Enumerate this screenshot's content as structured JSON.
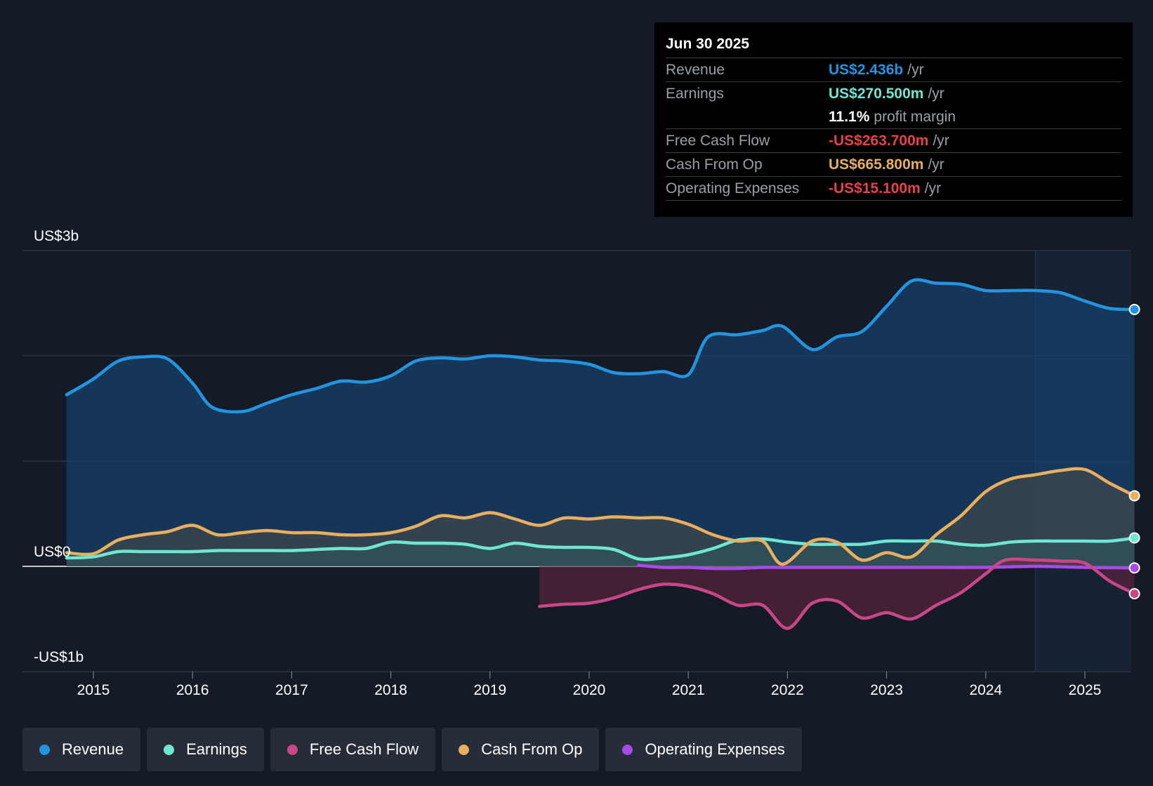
{
  "colors": {
    "revenue": "#2394df",
    "earnings": "#6fe6d3",
    "free_cash_flow": "#c94789",
    "cash_from_op": "#e8af5e",
    "operating_expenses": "#a64ae8",
    "negative": "#e8414a"
  },
  "tooltip": {
    "date": "Jun 30 2025",
    "rows": [
      {
        "label": "Revenue",
        "value": "US$2.436b",
        "unit": "/yr"
      },
      {
        "label": "Earnings",
        "value": "US$270.500m",
        "unit": "/yr"
      },
      {
        "margin_value": "11.1%",
        "margin_label": "profit margin"
      },
      {
        "label": "Free Cash Flow",
        "value": "-US$263.700m",
        "unit": "/yr"
      },
      {
        "label": "Cash From Op",
        "value": "US$665.800m",
        "unit": "/yr"
      },
      {
        "label": "Operating Expenses",
        "value": "-US$15.100m",
        "unit": "/yr"
      }
    ]
  },
  "legend": [
    {
      "label": "Revenue",
      "color": "#2394df"
    },
    {
      "label": "Earnings",
      "color": "#6fe6d3"
    },
    {
      "label": "Free Cash Flow",
      "color": "#c94789"
    },
    {
      "label": "Cash From Op",
      "color": "#e8af5e"
    },
    {
      "label": "Operating Expenses",
      "color": "#a64ae8"
    }
  ],
  "chart_data": {
    "type": "area",
    "title": "",
    "xlabel": "",
    "ylabel": "",
    "ylim": [
      -1.0,
      3.0
    ],
    "xlim": [
      2014.73,
      2025.5
    ],
    "x_ticks": [
      2015,
      2016,
      2017,
      2018,
      2019,
      2020,
      2021,
      2022,
      2023,
      2024,
      2025
    ],
    "x_tick_labels": [
      "2015",
      "2016",
      "2017",
      "2018",
      "2019",
      "2020",
      "2021",
      "2022",
      "2023",
      "2024",
      "2025"
    ],
    "y_axis_labels": [
      {
        "value": 3.0,
        "label": "US$3b"
      },
      {
        "value": 0.0,
        "label": "US$0"
      },
      {
        "value": -1.0,
        "label": "-US$1b"
      }
    ],
    "y_gridlines": [
      3.0,
      2.0,
      1.0,
      0.0,
      -1.0
    ],
    "forecast_shade_start": 2024.5,
    "units": "US$ billions",
    "series": [
      {
        "name": "Revenue",
        "key": "revenue",
        "points": [
          [
            2014.73,
            1.63
          ],
          [
            2015.0,
            1.78
          ],
          [
            2015.25,
            1.95
          ],
          [
            2015.5,
            1.99
          ],
          [
            2015.75,
            1.97
          ],
          [
            2016.0,
            1.74
          ],
          [
            2016.2,
            1.51
          ],
          [
            2016.5,
            1.47
          ],
          [
            2016.75,
            1.55
          ],
          [
            2017.0,
            1.63
          ],
          [
            2017.25,
            1.69
          ],
          [
            2017.5,
            1.76
          ],
          [
            2017.75,
            1.75
          ],
          [
            2018.0,
            1.81
          ],
          [
            2018.25,
            1.95
          ],
          [
            2018.5,
            1.98
          ],
          [
            2018.75,
            1.97
          ],
          [
            2019.0,
            2.0
          ],
          [
            2019.25,
            1.99
          ],
          [
            2019.5,
            1.96
          ],
          [
            2019.75,
            1.95
          ],
          [
            2020.0,
            1.92
          ],
          [
            2020.25,
            1.84
          ],
          [
            2020.5,
            1.83
          ],
          [
            2020.75,
            1.85
          ],
          [
            2021.0,
            1.82
          ],
          [
            2021.2,
            2.18
          ],
          [
            2021.5,
            2.2
          ],
          [
            2021.75,
            2.24
          ],
          [
            2021.95,
            2.28
          ],
          [
            2022.25,
            2.06
          ],
          [
            2022.5,
            2.18
          ],
          [
            2022.75,
            2.23
          ],
          [
            2023.0,
            2.47
          ],
          [
            2023.25,
            2.71
          ],
          [
            2023.5,
            2.69
          ],
          [
            2023.75,
            2.68
          ],
          [
            2024.0,
            2.62
          ],
          [
            2024.25,
            2.62
          ],
          [
            2024.5,
            2.62
          ],
          [
            2024.75,
            2.6
          ],
          [
            2025.0,
            2.52
          ],
          [
            2025.25,
            2.45
          ],
          [
            2025.5,
            2.44
          ]
        ]
      },
      {
        "name": "Earnings",
        "key": "earnings",
        "points": [
          [
            2014.73,
            0.08
          ],
          [
            2015.0,
            0.09
          ],
          [
            2015.25,
            0.14
          ],
          [
            2015.5,
            0.14
          ],
          [
            2015.75,
            0.14
          ],
          [
            2016.0,
            0.14
          ],
          [
            2016.25,
            0.15
          ],
          [
            2016.5,
            0.15
          ],
          [
            2016.75,
            0.15
          ],
          [
            2017.0,
            0.15
          ],
          [
            2017.25,
            0.16
          ],
          [
            2017.5,
            0.17
          ],
          [
            2017.75,
            0.17
          ],
          [
            2018.0,
            0.23
          ],
          [
            2018.25,
            0.22
          ],
          [
            2018.5,
            0.22
          ],
          [
            2018.75,
            0.21
          ],
          [
            2019.0,
            0.17
          ],
          [
            2019.25,
            0.22
          ],
          [
            2019.5,
            0.19
          ],
          [
            2019.75,
            0.18
          ],
          [
            2020.0,
            0.18
          ],
          [
            2020.25,
            0.16
          ],
          [
            2020.5,
            0.07
          ],
          [
            2020.75,
            0.08
          ],
          [
            2021.0,
            0.11
          ],
          [
            2021.25,
            0.17
          ],
          [
            2021.5,
            0.25
          ],
          [
            2021.75,
            0.26
          ],
          [
            2022.0,
            0.23
          ],
          [
            2022.25,
            0.21
          ],
          [
            2022.5,
            0.21
          ],
          [
            2022.75,
            0.21
          ],
          [
            2023.0,
            0.24
          ],
          [
            2023.25,
            0.24
          ],
          [
            2023.5,
            0.24
          ],
          [
            2023.75,
            0.21
          ],
          [
            2024.0,
            0.2
          ],
          [
            2024.25,
            0.23
          ],
          [
            2024.5,
            0.24
          ],
          [
            2024.75,
            0.24
          ],
          [
            2025.0,
            0.24
          ],
          [
            2025.25,
            0.24
          ],
          [
            2025.5,
            0.27
          ]
        ]
      },
      {
        "name": "Free Cash Flow",
        "key": "free_cash_flow",
        "points": [
          [
            2019.5,
            -0.38
          ],
          [
            2019.75,
            -0.36
          ],
          [
            2020.0,
            -0.35
          ],
          [
            2020.25,
            -0.3
          ],
          [
            2020.5,
            -0.22
          ],
          [
            2020.75,
            -0.17
          ],
          [
            2021.0,
            -0.19
          ],
          [
            2021.25,
            -0.26
          ],
          [
            2021.5,
            -0.37
          ],
          [
            2021.75,
            -0.37
          ],
          [
            2022.0,
            -0.59
          ],
          [
            2022.25,
            -0.35
          ],
          [
            2022.5,
            -0.33
          ],
          [
            2022.75,
            -0.49
          ],
          [
            2023.0,
            -0.44
          ],
          [
            2023.25,
            -0.5
          ],
          [
            2023.5,
            -0.37
          ],
          [
            2023.75,
            -0.25
          ],
          [
            2024.0,
            -0.07
          ],
          [
            2024.2,
            0.06
          ],
          [
            2024.5,
            0.06
          ],
          [
            2024.75,
            0.05
          ],
          [
            2025.0,
            0.03
          ],
          [
            2025.25,
            -0.14
          ],
          [
            2025.5,
            -0.26
          ]
        ]
      },
      {
        "name": "Cash From Op",
        "key": "cash_from_op",
        "points": [
          [
            2014.73,
            0.13
          ],
          [
            2015.0,
            0.12
          ],
          [
            2015.25,
            0.25
          ],
          [
            2015.5,
            0.3
          ],
          [
            2015.75,
            0.33
          ],
          [
            2016.0,
            0.39
          ],
          [
            2016.25,
            0.3
          ],
          [
            2016.5,
            0.32
          ],
          [
            2016.75,
            0.34
          ],
          [
            2017.0,
            0.32
          ],
          [
            2017.25,
            0.32
          ],
          [
            2017.5,
            0.3
          ],
          [
            2017.75,
            0.3
          ],
          [
            2018.0,
            0.32
          ],
          [
            2018.25,
            0.38
          ],
          [
            2018.5,
            0.48
          ],
          [
            2018.75,
            0.46
          ],
          [
            2019.0,
            0.51
          ],
          [
            2019.25,
            0.45
          ],
          [
            2019.5,
            0.39
          ],
          [
            2019.75,
            0.46
          ],
          [
            2020.0,
            0.45
          ],
          [
            2020.25,
            0.47
          ],
          [
            2020.5,
            0.46
          ],
          [
            2020.75,
            0.46
          ],
          [
            2021.0,
            0.4
          ],
          [
            2021.25,
            0.3
          ],
          [
            2021.5,
            0.24
          ],
          [
            2021.75,
            0.24
          ],
          [
            2021.95,
            0.02
          ],
          [
            2022.25,
            0.24
          ],
          [
            2022.5,
            0.23
          ],
          [
            2022.75,
            0.06
          ],
          [
            2023.0,
            0.13
          ],
          [
            2023.25,
            0.09
          ],
          [
            2023.5,
            0.3
          ],
          [
            2023.75,
            0.48
          ],
          [
            2024.0,
            0.71
          ],
          [
            2024.25,
            0.83
          ],
          [
            2024.5,
            0.87
          ],
          [
            2024.75,
            0.91
          ],
          [
            2025.0,
            0.92
          ],
          [
            2025.25,
            0.79
          ],
          [
            2025.5,
            0.67
          ]
        ]
      },
      {
        "name": "Operating Expenses",
        "key": "operating_expenses",
        "points": [
          [
            2020.5,
            0.01
          ],
          [
            2020.75,
            -0.01
          ],
          [
            2021.0,
            -0.01
          ],
          [
            2021.25,
            -0.02
          ],
          [
            2021.5,
            -0.02
          ],
          [
            2021.75,
            -0.01
          ],
          [
            2022.0,
            -0.01
          ],
          [
            2022.5,
            -0.01
          ],
          [
            2023.0,
            -0.01
          ],
          [
            2023.5,
            -0.01
          ],
          [
            2024.0,
            -0.01
          ],
          [
            2024.5,
            0.0
          ],
          [
            2025.0,
            -0.01
          ],
          [
            2025.5,
            -0.015
          ]
        ]
      }
    ]
  }
}
